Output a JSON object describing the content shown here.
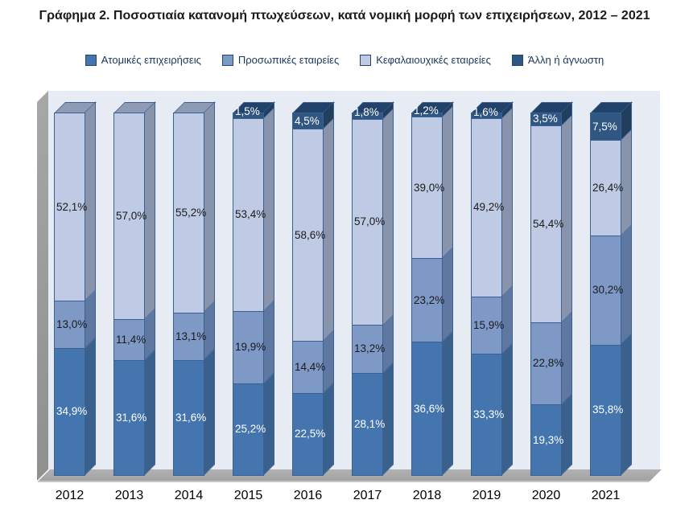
{
  "chart_data": {
    "type": "bar",
    "subtype": "stacked-100-percent-3d-columns",
    "title": "Γράφημα 2. Ποσοστιαία κατανομή πτωχεύσεων, κατά νομική μορφή των επιχειρήσεων, 2012 – 2021",
    "categories": [
      "2012",
      "2013",
      "2014",
      "2015",
      "2016",
      "2017",
      "2018",
      "2019",
      "2020",
      "2021"
    ],
    "series": [
      {
        "name": "Ατομικές επιχειρήσεις",
        "values": [
          34.9,
          31.6,
          31.6,
          25.2,
          22.5,
          28.1,
          36.6,
          33.3,
          19.3,
          35.8
        ],
        "color": "#4475AE",
        "side_color": "#3A608D",
        "top_color": "#6F92B8",
        "label_color": "#FFFFFF"
      },
      {
        "name": "Προσωπικές εταιρείες",
        "values": [
          13.0,
          11.4,
          13.1,
          19.9,
          14.4,
          13.2,
          23.2,
          15.9,
          22.8,
          30.2
        ],
        "color": "#7E99C6",
        "side_color": "#5E78A2",
        "top_color": "#7B93BC",
        "label_color": "#1B1B1B"
      },
      {
        "name": "Κεφαλαιουχικές εταιρείες",
        "values": [
          52.1,
          57.0,
          55.2,
          53.4,
          58.6,
          57.0,
          39.0,
          49.2,
          54.4,
          26.4
        ],
        "color": "#BFCBE4",
        "side_color": "#8893AC",
        "top_color": "#8E9BB7",
        "label_color": "#1B1B1B"
      },
      {
        "name": "Άλλη ή άγνωστη",
        "values": [
          0,
          0,
          0,
          1.5,
          4.5,
          1.8,
          1.2,
          1.6,
          3.5,
          7.5
        ],
        "color": "#2F5781",
        "side_color": "#223E5E",
        "top_color": "#20416A",
        "label_color": "#FFFFFF"
      }
    ],
    "value_suffix": "%",
    "decimal_separator": ",",
    "ylim": [
      0,
      100
    ],
    "gridlines": false,
    "legend_position": "top"
  },
  "colors": {
    "page_background": "#FFFFFF",
    "plot_background": "#E7EBF4",
    "left_wall": "#9C9C9C",
    "floor": "#A8A8A8",
    "segment_outline": "#3A6191",
    "title_text": "#1A1A1A",
    "legend_text": "#17375E",
    "axis_text": "#000000"
  }
}
